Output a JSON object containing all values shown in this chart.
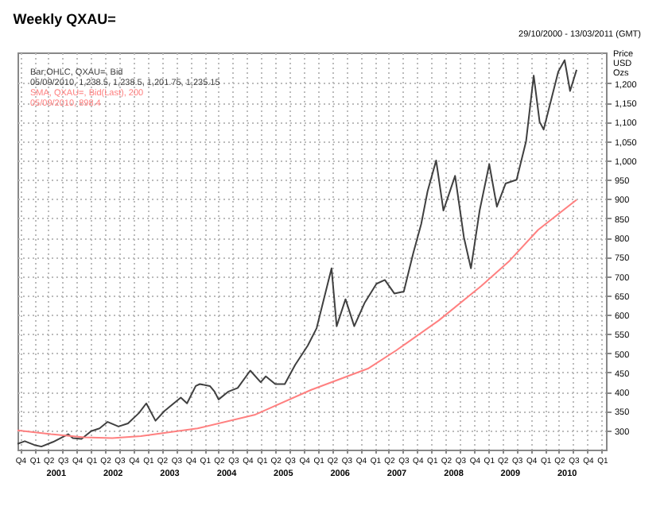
{
  "chart_data": {
    "type": "line",
    "title": "Weekly QXAU=",
    "subtitle": "29/10/2000 - 13/03/2011 (GMT)",
    "ylabel": "Price USD Ozs",
    "xlim": [
      "2000-10-29",
      "2011-03-13"
    ],
    "ylim": [
      250,
      1280
    ],
    "yticks": [
      300,
      350,
      400,
      450,
      500,
      550,
      600,
      650,
      700,
      750,
      800,
      850,
      900,
      950,
      {
        "value": 1000,
        "label": "1,000"
      },
      {
        "value": 1050,
        "label": "1,050"
      },
      {
        "value": 1100,
        "label": "1,100"
      },
      {
        "value": 1150,
        "label": "1,150"
      },
      {
        "value": 1200,
        "label": "1,200"
      }
    ],
    "xticks": [
      {
        "value": "2000-11-15",
        "label": "Q4"
      },
      {
        "value": "2001-02-15",
        "label": "Q1"
      },
      {
        "value": "2001-05-15",
        "label": "Q2"
      },
      {
        "value": "2001-08-15",
        "label": "Q3"
      },
      {
        "value": "2001-11-15",
        "label": "Q4"
      },
      {
        "value": "2002-02-15",
        "label": "Q1"
      },
      {
        "value": "2002-05-15",
        "label": "Q2"
      },
      {
        "value": "2002-08-15",
        "label": "Q3"
      },
      {
        "value": "2002-11-15",
        "label": "Q4"
      },
      {
        "value": "2003-02-15",
        "label": "Q1"
      },
      {
        "value": "2003-05-15",
        "label": "Q2"
      },
      {
        "value": "2003-08-15",
        "label": "Q3"
      },
      {
        "value": "2003-11-15",
        "label": "Q4"
      },
      {
        "value": "2004-02-15",
        "label": "Q1"
      },
      {
        "value": "2004-05-15",
        "label": "Q2"
      },
      {
        "value": "2004-08-15",
        "label": "Q3"
      },
      {
        "value": "2004-11-15",
        "label": "Q4"
      },
      {
        "value": "2005-02-15",
        "label": "Q1"
      },
      {
        "value": "2005-05-15",
        "label": "Q2"
      },
      {
        "value": "2005-08-15",
        "label": "Q3"
      },
      {
        "value": "2005-11-15",
        "label": "Q4"
      },
      {
        "value": "2006-02-15",
        "label": "Q1"
      },
      {
        "value": "2006-05-15",
        "label": "Q2"
      },
      {
        "value": "2006-08-15",
        "label": "Q3"
      },
      {
        "value": "2006-11-15",
        "label": "Q4"
      },
      {
        "value": "2007-02-15",
        "label": "Q1"
      },
      {
        "value": "2007-05-15",
        "label": "Q2"
      },
      {
        "value": "2007-08-15",
        "label": "Q3"
      },
      {
        "value": "2007-11-15",
        "label": "Q4"
      },
      {
        "value": "2008-02-15",
        "label": "Q1"
      },
      {
        "value": "2008-05-15",
        "label": "Q2"
      },
      {
        "value": "2008-08-15",
        "label": "Q3"
      },
      {
        "value": "2008-11-15",
        "label": "Q4"
      },
      {
        "value": "2009-02-15",
        "label": "Q1"
      },
      {
        "value": "2009-05-15",
        "label": "Q2"
      },
      {
        "value": "2009-08-15",
        "label": "Q3"
      },
      {
        "value": "2009-11-15",
        "label": "Q4"
      },
      {
        "value": "2010-02-15",
        "label": "Q1"
      },
      {
        "value": "2010-05-15",
        "label": "Q2"
      },
      {
        "value": "2010-08-15",
        "label": "Q3"
      },
      {
        "value": "2010-11-15",
        "label": "Q4"
      },
      {
        "value": "2011-02-15",
        "label": "Q1"
      }
    ],
    "x2lim": [
      "2000-10-29",
      "2011-03-13"
    ],
    "x2ticks": [
      {
        "value": "2001-07-01",
        "label": "2001"
      },
      {
        "value": "2002-07-01",
        "label": "2002"
      },
      {
        "value": "2003-07-01",
        "label": "2003"
      },
      {
        "value": "2004-07-01",
        "label": "2004"
      },
      {
        "value": "2005-07-01",
        "label": "2005"
      },
      {
        "value": "2006-07-01",
        "label": "2006"
      },
      {
        "value": "2007-07-01",
        "label": "2007"
      },
      {
        "value": "2008-07-01",
        "label": "2008"
      },
      {
        "value": "2009-07-01",
        "label": "2009"
      },
      {
        "value": "2010-07-01",
        "label": "2010"
      }
    ],
    "grid": true,
    "line_style": "solid",
    "annotations": [
      "05/09/2010, 1,238.5, 1,238.5, 1,201.75, 1,235.15",
      "05/09/2010, 898.4"
    ],
    "series": [
      {
        "name": "Bar;OHLC, QXAU=, Bid",
        "color": "#404040",
        "x": [
          "2000-10-29",
          "2000-12-15",
          "2001-02-15",
          "2001-04-01",
          "2001-06-15",
          "2001-09-20",
          "2001-10-20",
          "2001-12-15",
          "2002-02-15",
          "2002-04-10",
          "2002-06-01",
          "2002-08-10",
          "2002-10-10",
          "2002-12-20",
          "2003-02-05",
          "2003-04-05",
          "2003-06-01",
          "2003-09-15",
          "2003-10-25",
          "2003-12-20",
          "2004-01-15",
          "2004-03-20",
          "2004-04-20",
          "2004-05-15",
          "2004-07-15",
          "2004-09-15",
          "2004-12-05",
          "2005-02-10",
          "2005-03-15",
          "2005-05-15",
          "2005-07-15",
          "2005-09-20",
          "2005-12-10",
          "2006-02-05",
          "2006-05-12",
          "2006-06-14",
          "2006-08-10",
          "2006-10-05",
          "2006-12-10",
          "2007-02-25",
          "2007-04-20",
          "2007-06-20",
          "2007-08-20",
          "2007-10-20",
          "2007-12-10",
          "2008-01-20",
          "2008-03-15",
          "2008-05-01",
          "2008-07-15",
          "2008-09-10",
          "2008-10-25",
          "2008-12-20",
          "2009-02-20",
          "2009-04-10",
          "2009-06-05",
          "2009-08-15",
          "2009-10-15",
          "2009-12-03",
          "2010-01-10",
          "2010-02-05",
          "2010-05-10",
          "2010-06-20",
          "2010-07-25",
          "2010-09-05"
        ],
        "values": [
          265,
          272,
          262,
          258,
          270,
          290,
          280,
          278,
          298,
          305,
          322,
          310,
          318,
          345,
          370,
          325,
          350,
          385,
          370,
          415,
          420,
          415,
          400,
          380,
          400,
          410,
          455,
          425,
          440,
          420,
          420,
          470,
          520,
          565,
          720,
          570,
          640,
          570,
          630,
          680,
          690,
          655,
          660,
          760,
          835,
          920,
          1000,
          870,
          960,
          800,
          720,
          870,
          990,
          880,
          940,
          950,
          1050,
          1220,
          1100,
          1080,
          1230,
          1260,
          1180,
          1235
        ]
      },
      {
        "name": "SMA, QXAU=, Bid(Last), 200",
        "color": "#ff8080",
        "x": [
          "2000-10-29",
          "2001-06-01",
          "2002-01-01",
          "2002-07-01",
          "2003-01-01",
          "2004-01-01",
          "2005-01-01",
          "2006-01-01",
          "2007-01-01",
          "2007-07-01",
          "2008-04-01",
          "2009-01-01",
          "2009-07-01",
          "2010-01-01",
          "2010-09-05"
        ],
        "values": [
          300,
          290,
          282,
          280,
          285,
          305,
          340,
          405,
          460,
          507,
          585,
          675,
          740,
          820,
          898
        ]
      }
    ]
  }
}
